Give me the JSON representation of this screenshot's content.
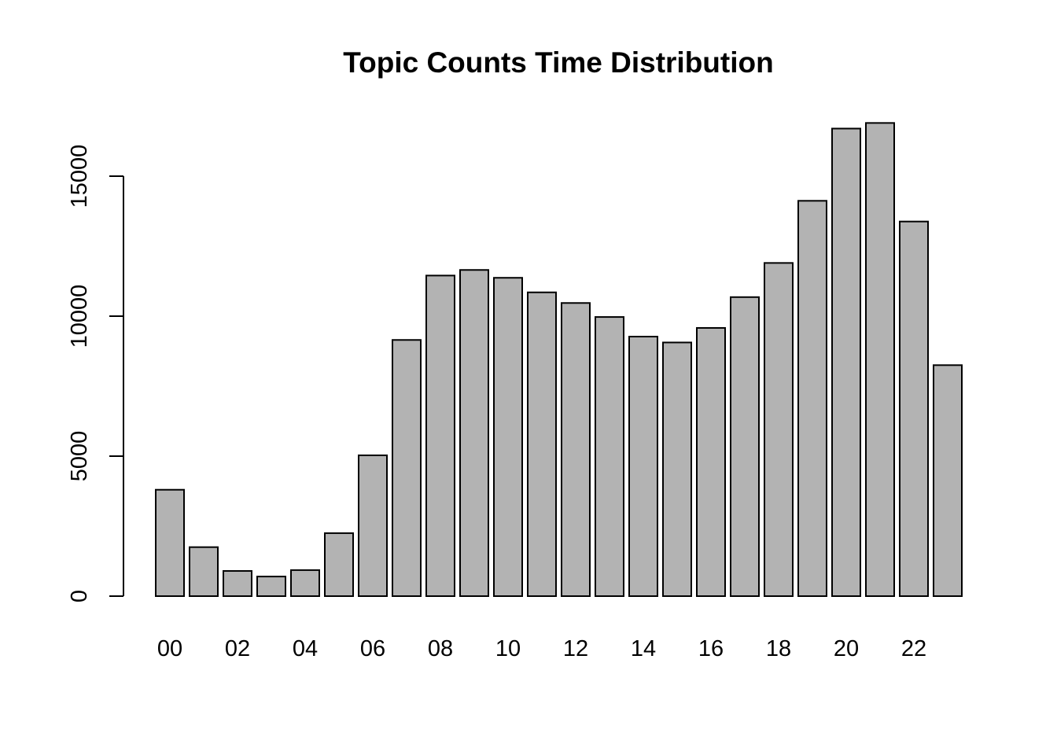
{
  "chart_data": {
    "type": "bar",
    "title": "Topic Counts Time Distribution",
    "xlabel": "",
    "ylabel": "",
    "categories": [
      "00",
      "01",
      "02",
      "03",
      "04",
      "05",
      "06",
      "07",
      "08",
      "09",
      "10",
      "11",
      "12",
      "13",
      "14",
      "15",
      "16",
      "17",
      "18",
      "19",
      "20",
      "21",
      "22",
      "23"
    ],
    "shown_category_labels": [
      "00",
      "02",
      "04",
      "06",
      "08",
      "10",
      "12",
      "14",
      "16",
      "18",
      "20",
      "22"
    ],
    "values": [
      3800,
      1750,
      900,
      700,
      930,
      2250,
      5030,
      9150,
      11450,
      11650,
      11370,
      10850,
      10470,
      9970,
      9270,
      9060,
      9580,
      10680,
      11900,
      14120,
      16700,
      16900,
      13380,
      8250
    ],
    "y_ticks": [
      0,
      5000,
      10000,
      15000
    ],
    "ylim": [
      0,
      17000
    ],
    "grid": false,
    "legend": "none",
    "bar_color": "#b3b3b3",
    "bar_border_color": "#000000"
  }
}
